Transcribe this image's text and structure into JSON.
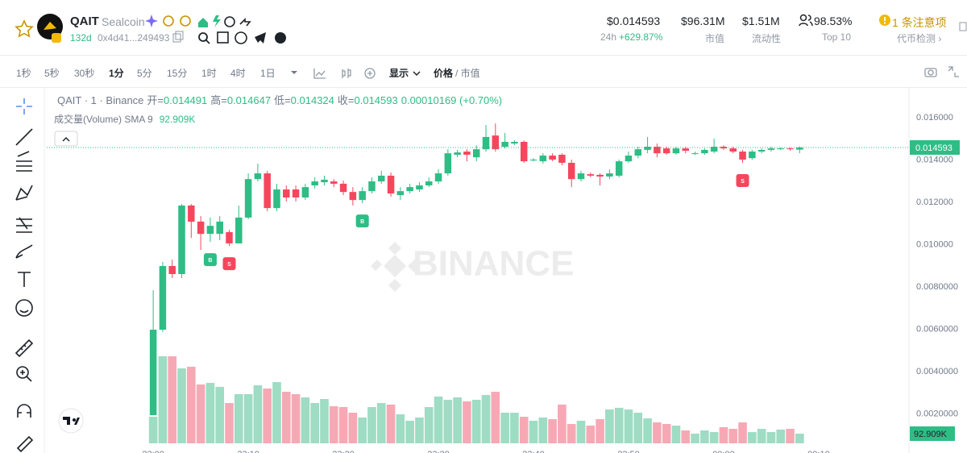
{
  "header": {
    "symbol": "QAIT",
    "name": "Sealcoin",
    "age": "132d",
    "address": "0x4d41...249493",
    "price": "$0.014593",
    "change_label": "24h",
    "change": "+629.87%",
    "market_cap": "$96.31M",
    "market_cap_label": "市值",
    "liquidity": "$1.51M",
    "liquidity_label": "流动性",
    "holders": "98.53%",
    "holders_label": "Top 10",
    "alert_count": "1",
    "alert": "条注意项",
    "check": "代币检测 ›"
  },
  "toolbar": {
    "intervals": [
      "1秒",
      "5秒",
      "30秒",
      "1分",
      "5分",
      "15分",
      "1时",
      "4时",
      "1日"
    ],
    "active": "1分",
    "display": "显示",
    "price": "价格",
    "market_cap": "/ 市值"
  },
  "chart": {
    "type": "candlestick",
    "legend_title": "QAIT · 1 · Binance",
    "open_label": "开=",
    "high_label": "高=",
    "low_label": "低=",
    "close_label": "收=",
    "change_label": "0.00010169 (+0.70%)",
    "volume_title": "成交量(Volume) SMA 9",
    "watermark": "BINANCE",
    "up_color": "#2ebd85",
    "down_color": "#f6465d",
    "volume_up_color": "#9edcc4",
    "volume_down_color": "#f6a9b5",
    "grid": false,
    "xlim": [
      -11.2,
      79.5
    ],
    "ylim": [
      0.000608,
      0.01745
    ],
    "volume_ylim": [
      0,
      3420000
    ],
    "xticks": [
      {
        "value": 0,
        "label": "23:00"
      },
      {
        "value": 10,
        "label": "23:10"
      },
      {
        "value": 20,
        "label": "23:20"
      },
      {
        "value": 30,
        "label": "23:30"
      },
      {
        "value": 40,
        "label": "23:40"
      },
      {
        "value": 50,
        "label": "23:50"
      },
      {
        "value": 60,
        "label": "00:00"
      },
      {
        "value": 70,
        "label": "00:10"
      }
    ],
    "yticks": [
      {
        "value": 0.016,
        "label": "0.016000"
      },
      {
        "value": 0.014,
        "label": "0.014000"
      },
      {
        "value": 0.012,
        "label": "0.012000"
      },
      {
        "value": 0.01,
        "label": "0.010000"
      },
      {
        "value": 0.008,
        "label": "0.0080000"
      },
      {
        "value": 0.006,
        "label": "0.0060000"
      },
      {
        "value": 0.004,
        "label": "0.0040000"
      },
      {
        "value": 0.002,
        "label": "0.0020000"
      }
    ],
    "candles": [
      [
        0.00194,
        0.00785,
        0.00194,
        0.00598
      ],
      [
        0.00598,
        0.00918,
        0.00587,
        0.00899
      ],
      [
        0.00899,
        0.00929,
        0.00842,
        0.00861
      ],
      [
        0.00861,
        0.01192,
        0.00842,
        0.01185
      ],
      [
        0.01185,
        0.01192,
        0.01032,
        0.011085
      ],
      [
        0.01109,
        0.01135,
        0.00975,
        0.01051
      ],
      [
        0.01051,
        0.01128,
        0.01013,
        0.01089
      ],
      [
        0.01051,
        0.01135,
        0.01021,
        0.01109
      ],
      [
        0.01059,
        0.0107,
        0.00994,
        0.01006
      ],
      [
        0.01006,
        0.01185,
        0.01006,
        0.01128
      ],
      [
        0.01128,
        0.01337,
        0.0112,
        0.0131
      ],
      [
        0.0131,
        0.01383,
        0.01299,
        0.01337
      ],
      [
        0.01337,
        0.01349,
        0.01158,
        0.01173
      ],
      [
        0.01173,
        0.01288,
        0.01158,
        0.01261
      ],
      [
        0.01261,
        0.0128,
        0.01204,
        0.01223
      ],
      [
        0.01261,
        0.0128,
        0.01204,
        0.01223
      ],
      [
        0.01223,
        0.01288,
        0.01211,
        0.01272
      ],
      [
        0.0128,
        0.01318,
        0.01265,
        0.01299
      ],
      [
        0.01295,
        0.01326,
        0.0128,
        0.01307
      ],
      [
        0.01299,
        0.0131,
        0.01272,
        0.01288
      ],
      [
        0.01288,
        0.01303,
        0.01234,
        0.01249
      ],
      [
        0.01249,
        0.01272,
        0.01185,
        0.01211
      ],
      [
        0.01211,
        0.01272,
        0.01196,
        0.01253
      ],
      [
        0.01253,
        0.01318,
        0.01242,
        0.01299
      ],
      [
        0.01299,
        0.01349,
        0.01288,
        0.01326
      ],
      [
        0.01326,
        0.01341,
        0.01227,
        0.01242
      ],
      [
        0.01234,
        0.01272,
        0.01211,
        0.01253
      ],
      [
        0.01253,
        0.01288,
        0.01242,
        0.01272
      ],
      [
        0.01261,
        0.01295,
        0.01249,
        0.0128
      ],
      [
        0.0128,
        0.01318,
        0.01272,
        0.01299
      ],
      [
        0.01299,
        0.01356,
        0.01288,
        0.01337
      ],
      [
        0.01337,
        0.01451,
        0.01326,
        0.01432
      ],
      [
        0.01425,
        0.01448,
        0.01413,
        0.01436
      ],
      [
        0.0144,
        0.01451,
        0.01394,
        0.01425
      ],
      [
        0.01413,
        0.0147,
        0.01394,
        0.01451
      ],
      [
        0.01451,
        0.01566,
        0.0144,
        0.01509
      ],
      [
        0.01516,
        0.01573,
        0.0144,
        0.01451
      ],
      [
        0.01463,
        0.01528,
        0.01455,
        0.01486
      ],
      [
        0.01478,
        0.01493,
        0.0147,
        0.01486
      ],
      [
        0.01486,
        0.01493,
        0.01387,
        0.01394
      ],
      [
        0.01398,
        0.01409,
        0.01394,
        0.01402
      ],
      [
        0.01394,
        0.01432,
        0.01383,
        0.01421
      ],
      [
        0.01421,
        0.01432,
        0.01394,
        0.01402
      ],
      [
        0.01425,
        0.01432,
        0.01375,
        0.01387
      ],
      [
        0.01387,
        0.01402,
        0.01272,
        0.0131
      ],
      [
        0.0131,
        0.01349,
        0.01299,
        0.01337
      ],
      [
        0.01333,
        0.01341,
        0.01318,
        0.01326
      ],
      [
        0.0133,
        0.01337,
        0.0128,
        0.01322
      ],
      [
        0.01322,
        0.01356,
        0.0131,
        0.01337
      ],
      [
        0.01326,
        0.01402,
        0.01318,
        0.01394
      ],
      [
        0.01394,
        0.0144,
        0.01387,
        0.01421
      ],
      [
        0.01421,
        0.01463,
        0.01409,
        0.01451
      ],
      [
        0.01448,
        0.01509,
        0.01432,
        0.01463
      ],
      [
        0.01463,
        0.01478,
        0.01413,
        0.01432
      ],
      [
        0.01455,
        0.01463,
        0.01425,
        0.01432
      ],
      [
        0.01432,
        0.01463,
        0.01425,
        0.01455
      ],
      [
        0.01455,
        0.01463,
        0.01432,
        0.01444
      ],
      [
        0.01429,
        0.0144,
        0.01425,
        0.01432
      ],
      [
        0.01432,
        0.01455,
        0.01425,
        0.01448
      ],
      [
        0.0144,
        0.01501,
        0.01432,
        0.01463
      ],
      [
        0.01463,
        0.0147,
        0.01448,
        0.01455
      ],
      [
        0.01455,
        0.01463,
        0.01432,
        0.0144
      ],
      [
        0.0144,
        0.01448,
        0.01387,
        0.01402
      ],
      [
        0.01409,
        0.01448,
        0.01402,
        0.0144
      ],
      [
        0.0144,
        0.01455,
        0.01432,
        0.01448
      ],
      [
        0.01448,
        0.01463,
        0.0144,
        0.01455
      ],
      [
        0.01451,
        0.01459,
        0.01448,
        0.01455
      ],
      [
        0.01455,
        0.01459,
        0.01444,
        0.01451
      ],
      [
        0.014491,
        0.014647,
        0.014324,
        0.014593
      ]
    ],
    "volume": [
      255000,
      836000,
      836000,
      720000,
      735000,
      565000,
      580000,
      542000,
      387000,
      472000,
      472000,
      557000,
      526000,
      588000,
      495000,
      472000,
      441000,
      387000,
      426000,
      356000,
      348000,
      294000,
      248000,
      348000,
      387000,
      372000,
      279000,
      217000,
      248000,
      348000,
      449000,
      418000,
      441000,
      403000,
      418000,
      464000,
      495000,
      294000,
      294000,
      255000,
      217000,
      248000,
      232000,
      372000,
      186000,
      217000,
      170000,
      232000,
      325000,
      341000,
      325000,
      294000,
      240000,
      201000,
      186000,
      170000,
      124000,
      93000,
      124000,
      108000,
      155000,
      139000,
      201000,
      108000,
      139000,
      108000,
      132000,
      139000,
      92909
    ],
    "current_volume": {
      "value": 92909,
      "label": "92.909K"
    },
    "markers": [
      {
        "index": 6,
        "label": "B",
        "color": "#2ebd85"
      },
      {
        "index": 8,
        "label": "S",
        "color": "#f6465d"
      },
      {
        "index": 22,
        "label": "B",
        "color": "#2ebd85"
      },
      {
        "index": 62,
        "label": "S",
        "color": "#f6465d"
      }
    ]
  }
}
